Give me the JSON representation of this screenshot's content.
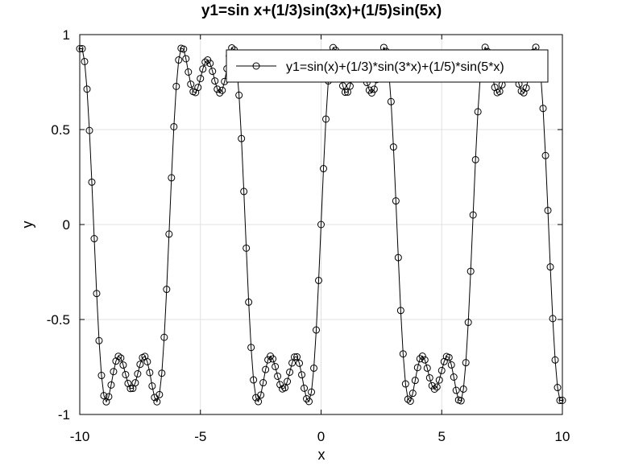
{
  "chart_data": {
    "type": "line",
    "title": "y1=sin x+(1/3)sin(3x)+(1/5)sin(5x)",
    "xlabel": "x",
    "ylabel": "y",
    "xlim": [
      -10,
      10
    ],
    "ylim": [
      -1,
      1
    ],
    "x_ticks": [
      "-10",
      "-5",
      "0",
      "5",
      "10"
    ],
    "y_ticks": [
      "1",
      "0.5",
      "0",
      "-0.5",
      "-1"
    ],
    "grid": true,
    "legend_position": "top-right",
    "series": [
      {
        "name": "y1=sin(x)+(1/3)*sin(3*x)+(1/5)*sin(5*x)",
        "marker": "open-circle",
        "color": "#000000",
        "x_start": -10,
        "x_end": 10,
        "x_step": 0.1,
        "formula": "sin(x)+(1/3)*sin(3*x)+(1/5)*sin(5*x)"
      }
    ]
  }
}
